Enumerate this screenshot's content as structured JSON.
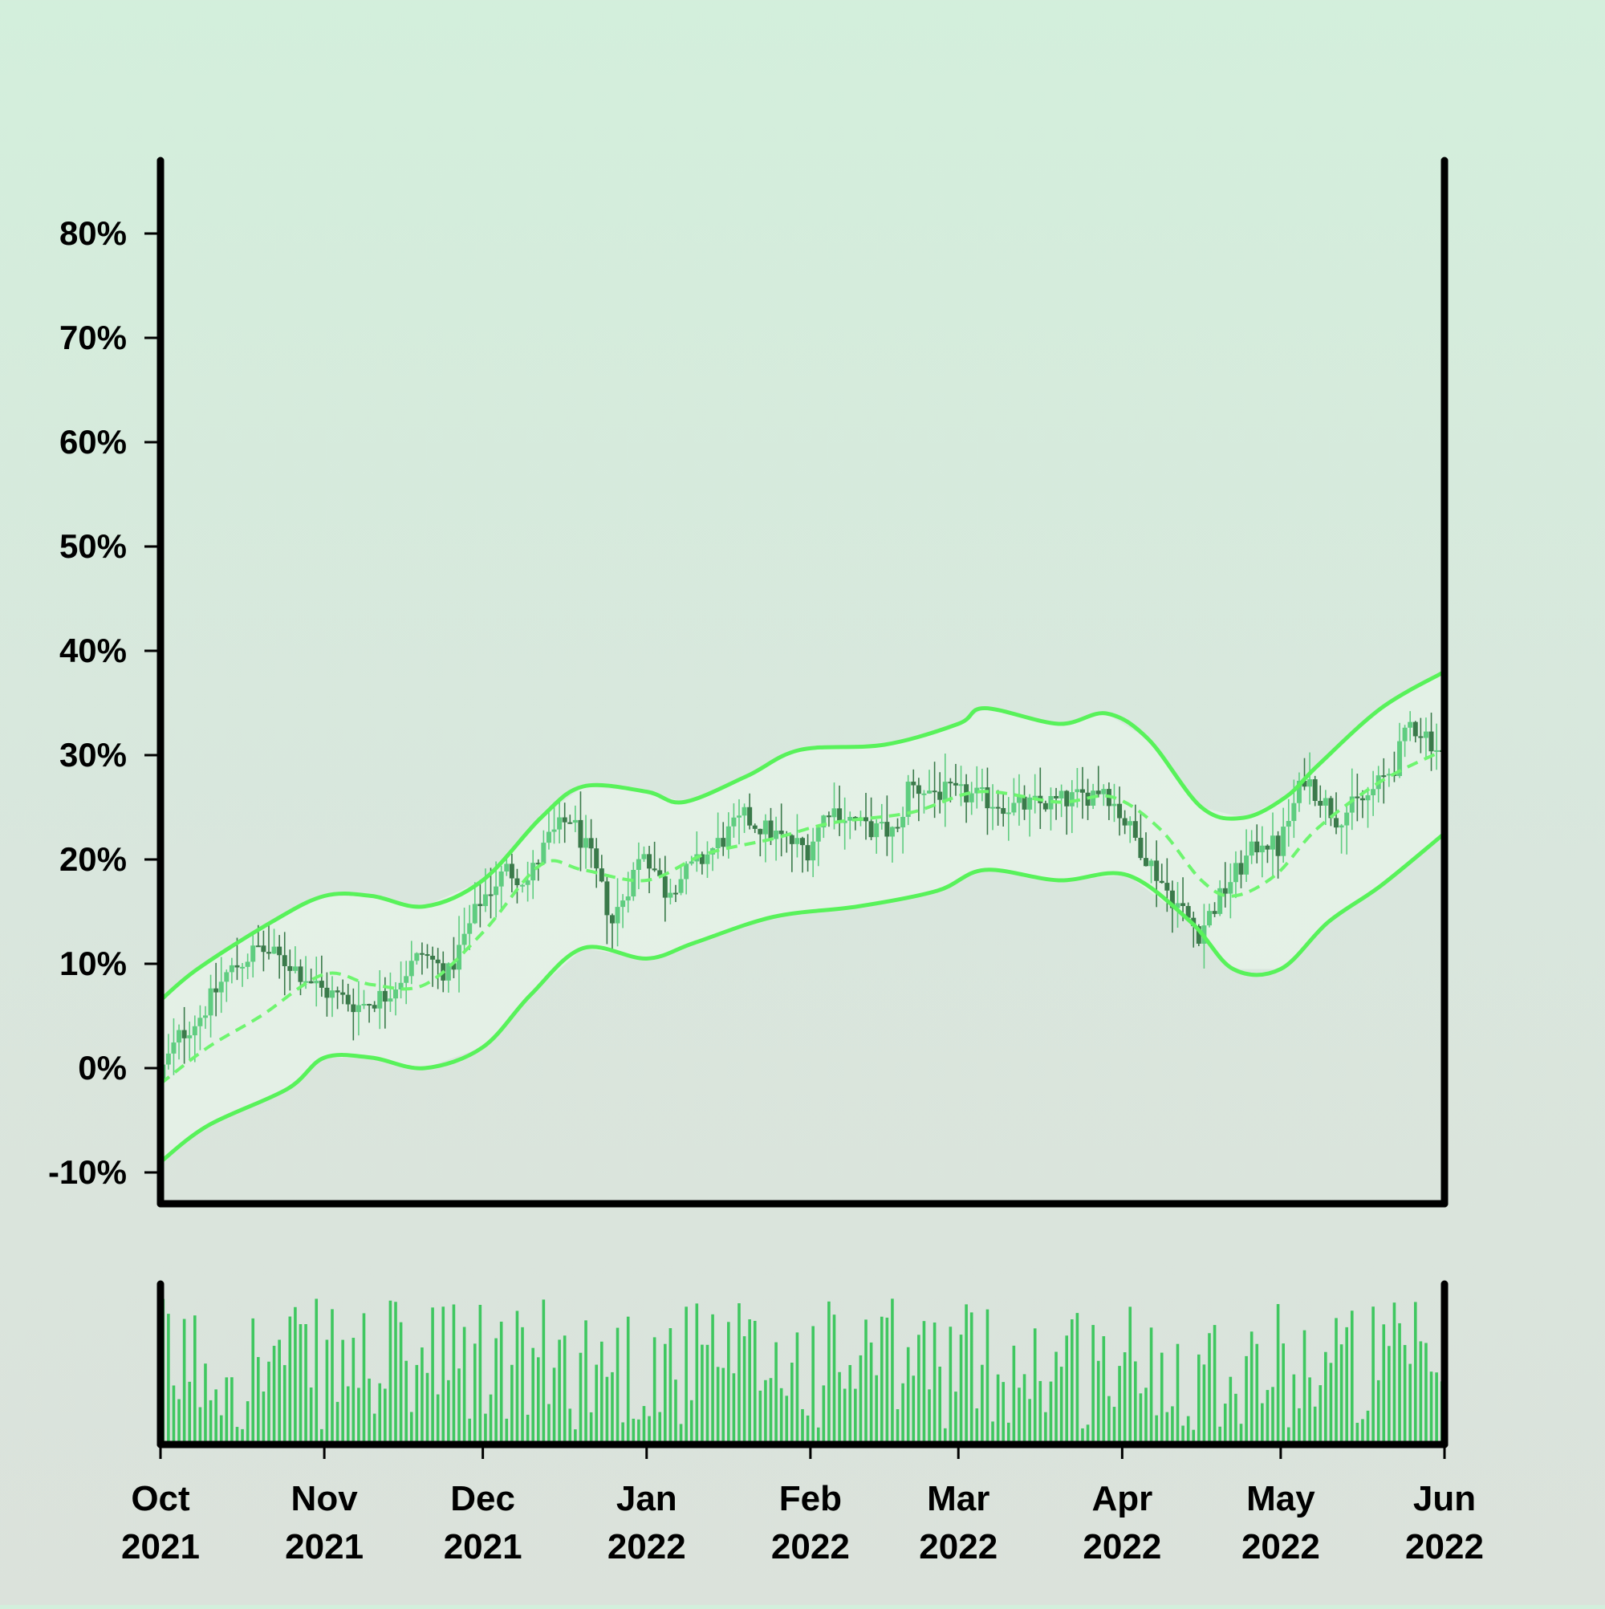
{
  "chart_data": {
    "type": "candlestick",
    "ylabel": "",
    "xlabel": "",
    "y_axis": {
      "range": [
        -13,
        87
      ],
      "ticks": [
        -10,
        0,
        10,
        20,
        30,
        40,
        50,
        60,
        70,
        80
      ],
      "tick_labels": [
        "-10%",
        "0%",
        "10%",
        "20%",
        "30%",
        "40%",
        "50%",
        "60%",
        "70%",
        "80%"
      ]
    },
    "x_axis": {
      "range": [
        "2021-10-01",
        "2022-06-01"
      ],
      "ticks": [
        {
          "date": "2021-10-01",
          "month": "Oct",
          "year": "2021"
        },
        {
          "date": "2021-11-01",
          "month": "Nov",
          "year": "2021"
        },
        {
          "date": "2021-12-01",
          "month": "Dec",
          "year": "2021"
        },
        {
          "date": "2022-01-01",
          "month": "Jan",
          "year": "2022"
        },
        {
          "date": "2022-02-01",
          "month": "Feb",
          "year": "2022"
        },
        {
          "date": "2022-03-01",
          "month": "Mar",
          "year": "2022"
        },
        {
          "date": "2022-04-01",
          "month": "Apr",
          "year": "2022"
        },
        {
          "date": "2022-05-01",
          "month": "May",
          "year": "2022"
        },
        {
          "date": "2022-06-01",
          "month": "Jun",
          "year": "2022"
        }
      ]
    },
    "price_trend": [
      [
        "2021-10-01",
        -1
      ],
      [
        "2021-10-05",
        3
      ],
      [
        "2021-10-09",
        5
      ],
      [
        "2021-10-14",
        9
      ],
      [
        "2021-10-20",
        11.5
      ],
      [
        "2021-10-26",
        10
      ],
      [
        "2021-11-01",
        7.5
      ],
      [
        "2021-11-08",
        6
      ],
      [
        "2021-11-13",
        7
      ],
      [
        "2021-11-20",
        11
      ],
      [
        "2021-11-25",
        9
      ],
      [
        "2021-12-01",
        16
      ],
      [
        "2021-12-06",
        19
      ],
      [
        "2021-12-10",
        18
      ],
      [
        "2021-12-14",
        22
      ],
      [
        "2021-12-18",
        24
      ],
      [
        "2021-12-22",
        20
      ],
      [
        "2021-12-26",
        14
      ],
      [
        "2022-01-01",
        21
      ],
      [
        "2022-01-05",
        17
      ],
      [
        "2022-01-12",
        20
      ],
      [
        "2022-01-20",
        24
      ],
      [
        "2022-01-27",
        22
      ],
      [
        "2022-02-01",
        21
      ],
      [
        "2022-02-05",
        25
      ],
      [
        "2022-02-12",
        23
      ],
      [
        "2022-02-18",
        22.5
      ],
      [
        "2022-02-20",
        27
      ],
      [
        "2022-02-25",
        26.5
      ],
      [
        "2022-03-05",
        26
      ],
      [
        "2022-03-12",
        25
      ],
      [
        "2022-03-20",
        25.5
      ],
      [
        "2022-03-25",
        26
      ],
      [
        "2022-03-29",
        27
      ],
      [
        "2022-04-04",
        22
      ],
      [
        "2022-04-10",
        17
      ],
      [
        "2022-04-16",
        13
      ],
      [
        "2022-04-22",
        18
      ],
      [
        "2022-04-28",
        22
      ],
      [
        "2022-05-01",
        21
      ],
      [
        "2022-05-06",
        28
      ],
      [
        "2022-05-12",
        24
      ],
      [
        "2022-05-18",
        26
      ],
      [
        "2022-05-23",
        29
      ],
      [
        "2022-05-26",
        33
      ],
      [
        "2022-05-29",
        32
      ],
      [
        "2022-06-01",
        30
      ]
    ],
    "ma_center": [
      [
        "2021-10-01",
        -1.5
      ],
      [
        "2021-10-10",
        2
      ],
      [
        "2021-10-20",
        5
      ],
      [
        "2021-11-01",
        9
      ],
      [
        "2021-11-10",
        8
      ],
      [
        "2021-11-20",
        8
      ],
      [
        "2021-12-01",
        13
      ],
      [
        "2021-12-12",
        19.5
      ],
      [
        "2021-12-20",
        19
      ],
      [
        "2022-01-01",
        18
      ],
      [
        "2022-01-12",
        20.5
      ],
      [
        "2022-01-25",
        22
      ],
      [
        "2022-02-05",
        23.5
      ],
      [
        "2022-02-20",
        24.5
      ],
      [
        "2022-03-05",
        26.5
      ],
      [
        "2022-03-20",
        25.5
      ],
      [
        "2022-03-30",
        26
      ],
      [
        "2022-04-08",
        23
      ],
      [
        "2022-04-16",
        18
      ],
      [
        "2022-04-22",
        16.5
      ],
      [
        "2022-04-30",
        18.5
      ],
      [
        "2022-05-08",
        23
      ],
      [
        "2022-05-20",
        27.5
      ],
      [
        "2022-06-01",
        30.5
      ]
    ],
    "band_upper": [
      [
        "2021-10-01",
        6.5
      ],
      [
        "2021-10-08",
        9.5
      ],
      [
        "2021-10-22",
        14
      ],
      [
        "2021-11-01",
        16.5
      ],
      [
        "2021-11-10",
        16.5
      ],
      [
        "2021-11-20",
        15.5
      ],
      [
        "2021-12-01",
        18
      ],
      [
        "2021-12-12",
        24
      ],
      [
        "2021-12-20",
        27
      ],
      [
        "2022-01-01",
        26.5
      ],
      [
        "2022-01-08",
        25.5
      ],
      [
        "2022-01-20",
        28
      ],
      [
        "2022-01-30",
        30.5
      ],
      [
        "2022-02-15",
        31
      ],
      [
        "2022-03-01",
        33
      ],
      [
        "2022-03-06",
        34.5
      ],
      [
        "2022-03-20",
        33
      ],
      [
        "2022-03-29",
        34
      ],
      [
        "2022-04-06",
        31.5
      ],
      [
        "2022-04-16",
        25
      ],
      [
        "2022-04-24",
        24
      ],
      [
        "2022-05-02",
        26
      ],
      [
        "2022-05-08",
        29
      ],
      [
        "2022-05-20",
        34.5
      ],
      [
        "2022-06-01",
        38
      ]
    ],
    "band_lower": [
      [
        "2021-10-01",
        -9
      ],
      [
        "2021-10-10",
        -5.5
      ],
      [
        "2021-10-25",
        -2
      ],
      [
        "2021-11-01",
        1
      ],
      [
        "2021-11-10",
        1
      ],
      [
        "2021-11-20",
        0
      ],
      [
        "2021-12-01",
        2
      ],
      [
        "2021-12-10",
        7
      ],
      [
        "2021-12-20",
        11.5
      ],
      [
        "2022-01-01",
        10.5
      ],
      [
        "2022-01-10",
        12
      ],
      [
        "2022-01-25",
        14.5
      ],
      [
        "2022-02-10",
        15.5
      ],
      [
        "2022-02-25",
        17
      ],
      [
        "2022-03-06",
        19
      ],
      [
        "2022-03-20",
        18
      ],
      [
        "2022-04-02",
        18.5
      ],
      [
        "2022-04-14",
        14
      ],
      [
        "2022-04-22",
        9.5
      ],
      [
        "2022-05-01",
        9.5
      ],
      [
        "2022-05-10",
        14
      ],
      [
        "2022-05-20",
        17.5
      ],
      [
        "2022-06-01",
        22.5
      ]
    ],
    "colors": {
      "band_line": "#58f25a",
      "ma_line": "#6ef56f",
      "band_fill": "#e8f5ea",
      "candle_up": "#5fcd80",
      "candle_down": "#3a7a4a",
      "volume_bar": "#3fc760",
      "axis": "#000000"
    }
  }
}
